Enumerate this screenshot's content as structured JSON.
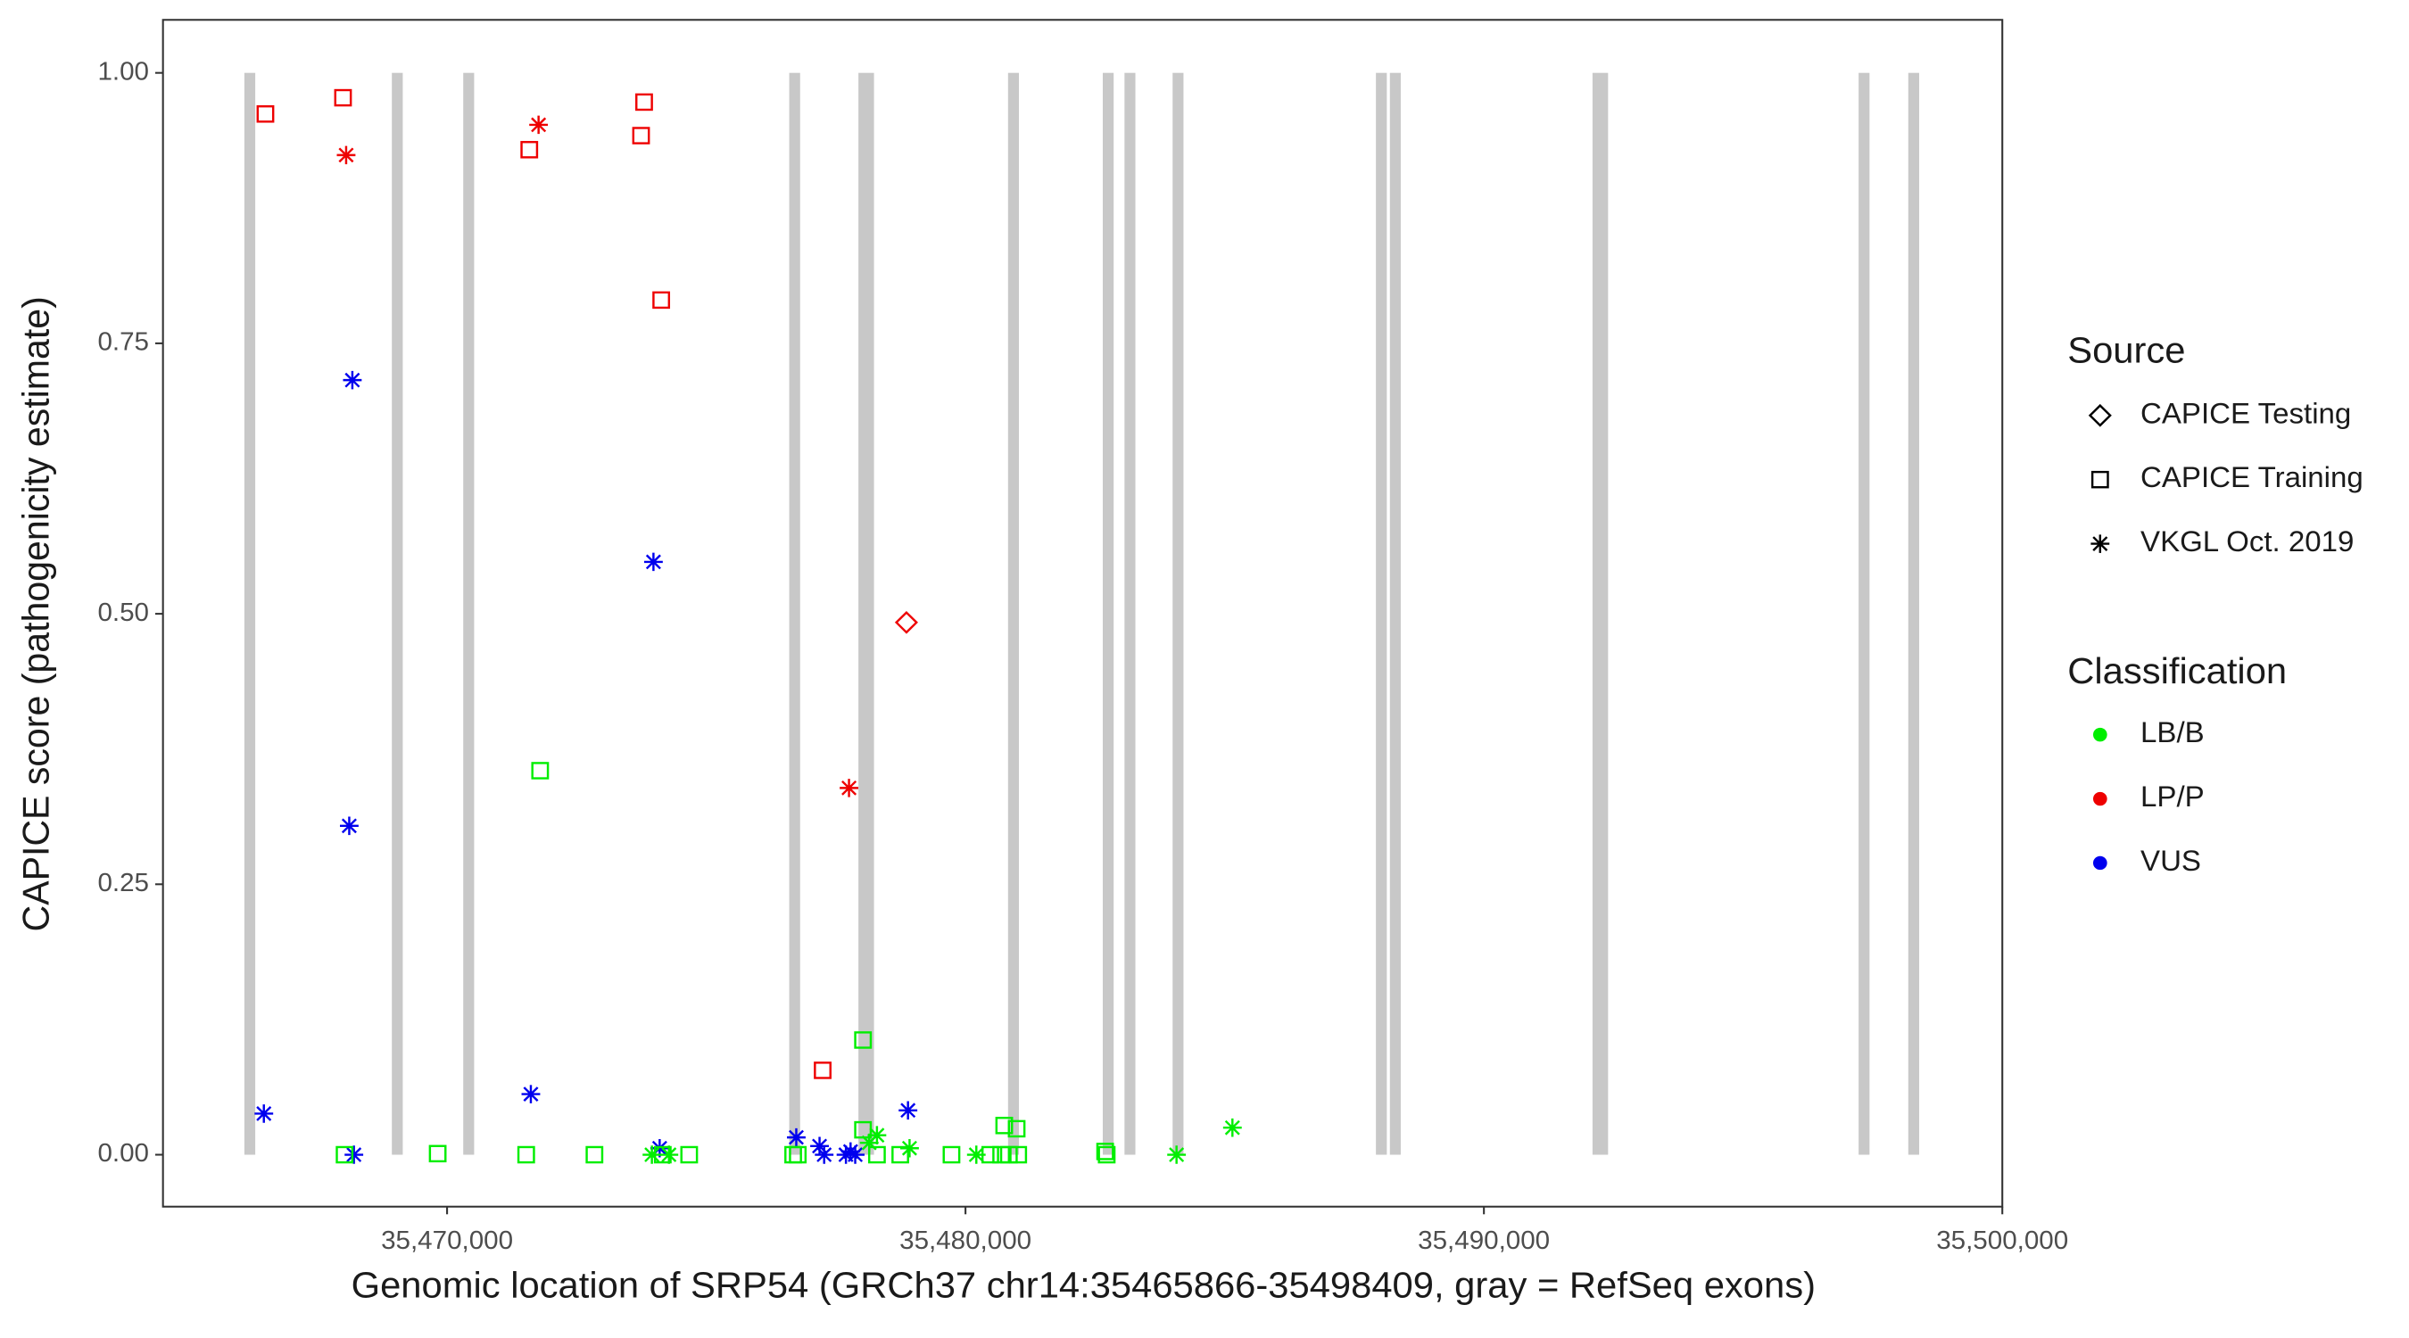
{
  "chart_data": {
    "type": "scatter",
    "x_label": "Genomic location of SRP54 (GRCh37 chr14:35465866-35498409, gray = RefSeq exons)",
    "y_label": "CAPICE score (pathogenicity estimate)",
    "xlim": [
      35464520,
      35500000
    ],
    "ylim": [
      -0.048,
      1.049
    ],
    "xticks": [
      {
        "value": 35470000,
        "label": "35,470,000"
      },
      {
        "value": 35480000,
        "label": "35,480,000"
      },
      {
        "value": 35490000,
        "label": "35,490,000"
      },
      {
        "value": 35500000,
        "label": "35,500,000"
      }
    ],
    "yticks": [
      {
        "value": 0,
        "label": "0.00"
      },
      {
        "value": 0.25,
        "label": "0.25"
      },
      {
        "value": 0.5,
        "label": "0.50"
      },
      {
        "value": 0.75,
        "label": "0.75"
      },
      {
        "value": 1,
        "label": "1.00"
      }
    ],
    "exon_color": "#c8c8c8",
    "exon_starts": [
      35466090,
      35468935,
      35470312,
      35476600,
      35477935,
      35480821,
      35482648,
      35483067,
      35483995,
      35487917,
      35488186,
      35492095,
      35497228,
      35498186
    ],
    "exon_ends": [
      35466300,
      35469145,
      35470522,
      35476810,
      35478235,
      35481031,
      35482858,
      35483277,
      35484205,
      35488127,
      35488396,
      35492395,
      35497438,
      35498396
    ],
    "shape_legend": {
      "title": "Source",
      "items": [
        {
          "label": "CAPICE Testing",
          "shape": "diamond"
        },
        {
          "label": "CAPICE Training",
          "shape": "square"
        },
        {
          "label": "VKGL Oct. 2019",
          "shape": "star"
        }
      ]
    },
    "color_legend": {
      "title": "Classification",
      "items": [
        {
          "label": "LB/B",
          "color": "#00ee00"
        },
        {
          "label": "LP/P",
          "color": "#ee0000"
        },
        {
          "label": "VUS",
          "color": "#0000ee"
        }
      ]
    },
    "series": [
      {
        "color": "#ee0000",
        "shape": "square",
        "x": [
          35466496,
          35467993,
          35471586,
          35473801,
          35473742,
          35474131,
          35477245
        ],
        "values": [
          0.962,
          0.977,
          0.929,
          0.973,
          0.942,
          0.79,
          0.078
        ]
      },
      {
        "color": "#ee0000",
        "shape": "star",
        "x": [
          35468053,
          35471765,
          35477753
        ],
        "values": [
          0.924,
          0.952,
          0.339
        ]
      },
      {
        "color": "#ee0000",
        "shape": "diamond",
        "x": [
          35478861
        ],
        "values": [
          0.492
        ]
      },
      {
        "color": "#0000ee",
        "shape": "star",
        "x": [
          35468173,
          35473981,
          35468113,
          35466466,
          35471616,
          35468203,
          35478891,
          35474101,
          35476736,
          35477185,
          35477274,
          35477694,
          35477783,
          35477873
        ],
        "values": [
          0.716,
          0.548,
          0.304,
          0.038,
          0.056,
          0,
          0.041,
          0.006,
          0.016,
          0.008,
          0,
          0,
          0.003,
          0
        ]
      },
      {
        "color": "#00ee00",
        "shape": "square",
        "x": [
          35471795,
          35478023,
          35468023,
          35469819,
          35471526,
          35472843,
          35474161,
          35474670,
          35476676,
          35476765,
          35478023,
          35478292,
          35478742,
          35479730,
          35480478,
          35480747,
          35480987,
          35480688,
          35480837,
          35481017,
          35482694,
          35482724
        ],
        "values": [
          0.355,
          0.106,
          0,
          0.001,
          0,
          0,
          0,
          0,
          0,
          0,
          0.023,
          0,
          0,
          0,
          0,
          0.027,
          0.024,
          0,
          0,
          0,
          0.003,
          0
        ]
      },
      {
        "color": "#00ee00",
        "shape": "star",
        "x": [
          35473951,
          35474280,
          35478143,
          35478292,
          35478921,
          35480209,
          35484071,
          35485149
        ],
        "values": [
          0,
          0,
          0.011,
          0.018,
          0.006,
          0,
          0,
          0.025
        ]
      }
    ]
  }
}
